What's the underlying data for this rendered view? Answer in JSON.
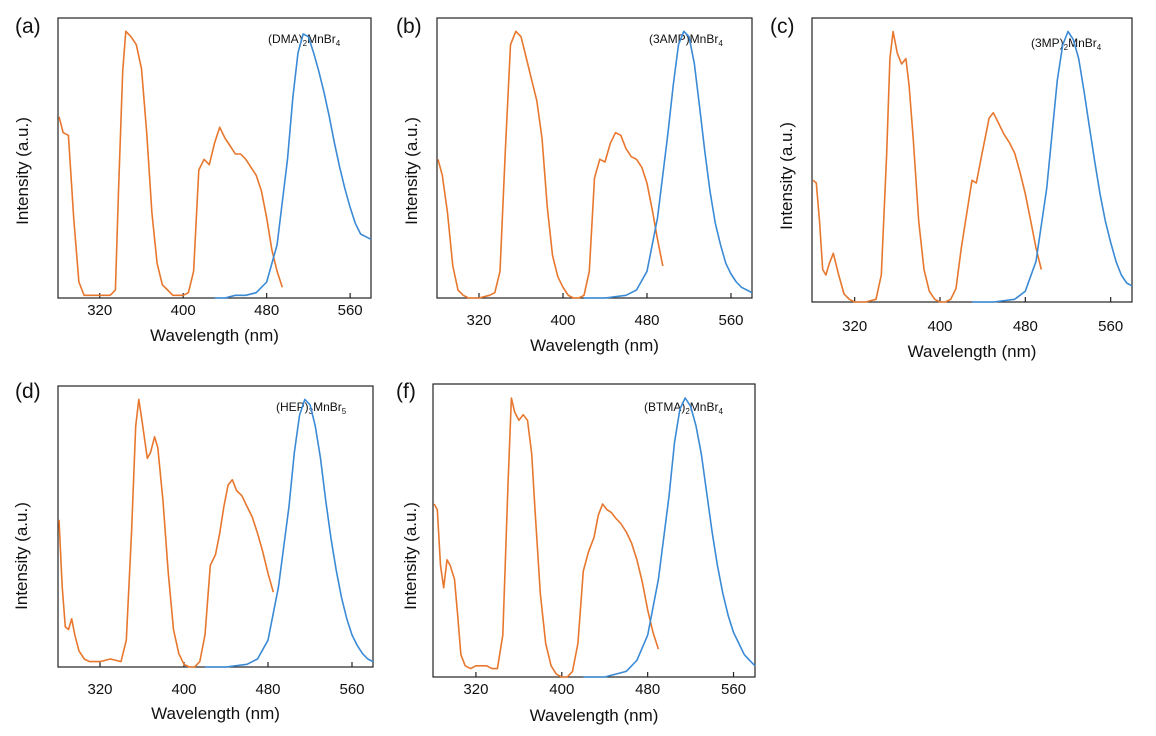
{
  "colors": {
    "excitation": "#e8772e",
    "emission": "#3b8ad6",
    "axis": "#222222"
  },
  "chart_data": [
    {
      "type": "line",
      "panel_label": "(a)",
      "compound": {
        "parts": [
          "(DMA)",
          "2",
          "MnBr",
          "4"
        ]
      },
      "xlabel": "Wavelength (nm)",
      "ylabel": "Intensity (a.u.)",
      "xlim": [
        280,
        580
      ],
      "ylim": [
        0,
        1.05
      ],
      "xticks": [
        "320",
        "400",
        "480",
        "560"
      ],
      "series": [
        {
          "role": "excitation",
          "x": [
            281,
            285,
            290,
            295,
            300,
            305,
            310,
            315,
            320,
            325,
            330,
            335,
            338,
            342,
            345,
            350,
            355,
            360,
            365,
            370,
            375,
            380,
            385,
            390,
            395,
            400,
            405,
            410,
            415,
            420,
            425,
            430,
            435,
            440,
            445,
            450,
            455,
            460,
            465,
            470,
            475,
            480,
            485,
            490,
            495
          ],
          "y": [
            0.68,
            0.62,
            0.61,
            0.3,
            0.06,
            0.01,
            0.01,
            0.01,
            0.01,
            0.01,
            0.01,
            0.03,
            0.4,
            0.85,
            1.0,
            0.98,
            0.95,
            0.86,
            0.62,
            0.32,
            0.13,
            0.05,
            0.03,
            0.01,
            0.01,
            0.01,
            0.02,
            0.1,
            0.48,
            0.52,
            0.5,
            0.58,
            0.64,
            0.6,
            0.57,
            0.54,
            0.54,
            0.52,
            0.49,
            0.46,
            0.4,
            0.3,
            0.18,
            0.1,
            0.04
          ]
        },
        {
          "role": "emission",
          "x": [
            430,
            440,
            450,
            460,
            470,
            480,
            490,
            500,
            505,
            510,
            515,
            520,
            525,
            530,
            535,
            540,
            545,
            550,
            555,
            560,
            565,
            570,
            575,
            580
          ],
          "y": [
            0.0,
            0.0,
            0.01,
            0.01,
            0.02,
            0.06,
            0.2,
            0.52,
            0.75,
            0.92,
            0.99,
            0.98,
            0.92,
            0.85,
            0.77,
            0.68,
            0.58,
            0.49,
            0.41,
            0.34,
            0.28,
            0.24,
            0.23,
            0.22
          ]
        }
      ]
    },
    {
      "type": "line",
      "panel_label": "(b)",
      "compound": {
        "parts": [
          "(3AMP)MnBr",
          "4"
        ]
      },
      "xlabel": "Wavelength (nm)",
      "ylabel": "Intensity (a.u.)",
      "xlim": [
        280,
        580
      ],
      "ylim": [
        0,
        1.05
      ],
      "xticks": [
        "320",
        "400",
        "480",
        "560"
      ],
      "series": [
        {
          "role": "excitation",
          "x": [
            281,
            285,
            290,
            295,
            300,
            305,
            310,
            320,
            330,
            335,
            340,
            345,
            350,
            355,
            360,
            365,
            370,
            375,
            380,
            385,
            390,
            395,
            400,
            405,
            410,
            415,
            420,
            425,
            430,
            435,
            440,
            445,
            450,
            455,
            460,
            465,
            470,
            475,
            480,
            485,
            490,
            495
          ],
          "y": [
            0.52,
            0.46,
            0.32,
            0.12,
            0.03,
            0.01,
            0.0,
            0.0,
            0.01,
            0.02,
            0.1,
            0.55,
            0.95,
            1.0,
            0.98,
            0.9,
            0.82,
            0.74,
            0.6,
            0.34,
            0.16,
            0.08,
            0.04,
            0.01,
            0.0,
            0.0,
            0.01,
            0.1,
            0.45,
            0.52,
            0.51,
            0.58,
            0.62,
            0.61,
            0.56,
            0.53,
            0.52,
            0.49,
            0.43,
            0.33,
            0.22,
            0.12
          ]
        },
        {
          "role": "emission",
          "x": [
            420,
            440,
            460,
            470,
            480,
            490,
            500,
            505,
            510,
            515,
            520,
            525,
            530,
            535,
            540,
            545,
            550,
            555,
            560,
            565,
            570,
            575,
            580
          ],
          "y": [
            0.0,
            0.0,
            0.01,
            0.03,
            0.1,
            0.3,
            0.62,
            0.8,
            0.95,
            1.0,
            0.98,
            0.88,
            0.72,
            0.55,
            0.4,
            0.28,
            0.2,
            0.13,
            0.09,
            0.06,
            0.04,
            0.03,
            0.02
          ]
        }
      ]
    },
    {
      "type": "line",
      "panel_label": "(c)",
      "compound": {
        "parts": [
          "(3MP)",
          "2",
          "MnBr",
          "4"
        ]
      },
      "xlabel": "Wavelength (nm)",
      "ylabel": "Intensity (a.u.)",
      "xlim": [
        280,
        580
      ],
      "ylim": [
        0,
        1.05
      ],
      "xticks": [
        "320",
        "400",
        "480",
        "560"
      ],
      "series": [
        {
          "role": "excitation",
          "x": [
            281,
            284,
            287,
            290,
            293,
            296,
            300,
            305,
            310,
            315,
            320,
            330,
            340,
            345,
            350,
            353,
            356,
            360,
            364,
            368,
            371,
            375,
            380,
            385,
            390,
            395,
            400,
            405,
            410,
            415,
            420,
            430,
            434,
            438,
            442,
            446,
            450,
            455,
            460,
            465,
            470,
            475,
            480,
            485,
            490,
            495
          ],
          "y": [
            0.45,
            0.44,
            0.3,
            0.12,
            0.1,
            0.14,
            0.18,
            0.1,
            0.03,
            0.01,
            0.0,
            0.0,
            0.01,
            0.1,
            0.55,
            0.9,
            1.0,
            0.92,
            0.88,
            0.9,
            0.8,
            0.6,
            0.3,
            0.12,
            0.04,
            0.01,
            0.0,
            0.0,
            0.01,
            0.05,
            0.2,
            0.45,
            0.44,
            0.52,
            0.6,
            0.68,
            0.7,
            0.66,
            0.62,
            0.59,
            0.55,
            0.48,
            0.4,
            0.3,
            0.2,
            0.12
          ]
        },
        {
          "role": "emission",
          "x": [
            430,
            450,
            470,
            480,
            490,
            500,
            505,
            510,
            515,
            520,
            525,
            530,
            535,
            540,
            545,
            550,
            555,
            560,
            565,
            570,
            575,
            580
          ],
          "y": [
            0.0,
            0.0,
            0.01,
            0.04,
            0.15,
            0.42,
            0.62,
            0.82,
            0.95,
            1.0,
            0.97,
            0.9,
            0.78,
            0.65,
            0.52,
            0.4,
            0.3,
            0.22,
            0.15,
            0.1,
            0.07,
            0.06
          ]
        }
      ]
    },
    {
      "type": "line",
      "panel_label": "(d)",
      "compound": {
        "parts": [
          "(HEP)",
          "3",
          "MnBr",
          "5"
        ]
      },
      "xlabel": "Wavelength (nm)",
      "ylabel": "Intensity (a.u.)",
      "xlim": [
        280,
        580
      ],
      "ylim": [
        0,
        1.05
      ],
      "xticks": [
        "320",
        "400",
        "480",
        "560"
      ],
      "series": [
        {
          "role": "excitation",
          "x": [
            281,
            284,
            287,
            290,
            293,
            296,
            300,
            305,
            310,
            320,
            330,
            340,
            345,
            350,
            354,
            357,
            360,
            365,
            368,
            372,
            375,
            380,
            385,
            390,
            395,
            400,
            405,
            410,
            415,
            420,
            425,
            430,
            434,
            438,
            442,
            446,
            450,
            455,
            460,
            465,
            470,
            475,
            480,
            485
          ],
          "y": [
            0.55,
            0.3,
            0.15,
            0.14,
            0.18,
            0.12,
            0.06,
            0.03,
            0.02,
            0.02,
            0.03,
            0.02,
            0.1,
            0.5,
            0.9,
            1.0,
            0.92,
            0.78,
            0.8,
            0.86,
            0.82,
            0.62,
            0.35,
            0.14,
            0.05,
            0.01,
            0.0,
            0.0,
            0.02,
            0.12,
            0.38,
            0.42,
            0.5,
            0.6,
            0.68,
            0.7,
            0.66,
            0.64,
            0.6,
            0.56,
            0.5,
            0.43,
            0.35,
            0.28
          ]
        },
        {
          "role": "emission",
          "x": [
            420,
            440,
            460,
            470,
            480,
            490,
            500,
            505,
            510,
            515,
            520,
            525,
            530,
            535,
            540,
            545,
            550,
            555,
            560,
            565,
            570,
            575,
            580
          ],
          "y": [
            0.0,
            0.0,
            0.01,
            0.03,
            0.1,
            0.3,
            0.6,
            0.8,
            0.94,
            1.0,
            0.98,
            0.9,
            0.78,
            0.62,
            0.48,
            0.36,
            0.26,
            0.18,
            0.12,
            0.08,
            0.05,
            0.03,
            0.02
          ]
        }
      ]
    },
    {
      "type": "line",
      "panel_label": "(f)",
      "compound": {
        "parts": [
          "(BTMA)",
          "2",
          "MnBr",
          "4"
        ]
      },
      "xlabel": "Wavelength (nm)",
      "ylabel": "Intensity (a.u.)",
      "xlim": [
        280,
        580
      ],
      "ylim": [
        0,
        1.05
      ],
      "xticks": [
        "320",
        "400",
        "480",
        "560"
      ],
      "series": [
        {
          "role": "excitation",
          "x": [
            281,
            284,
            287,
            290,
            293,
            296,
            300,
            303,
            306,
            310,
            315,
            320,
            330,
            335,
            340,
            345,
            350,
            353,
            356,
            360,
            364,
            368,
            372,
            375,
            380,
            385,
            390,
            395,
            400,
            405,
            410,
            415,
            420,
            425,
            430,
            434,
            438,
            442,
            446,
            450,
            455,
            460,
            465,
            470,
            475,
            480,
            485,
            490
          ],
          "y": [
            0.62,
            0.6,
            0.4,
            0.32,
            0.42,
            0.4,
            0.35,
            0.22,
            0.08,
            0.04,
            0.03,
            0.04,
            0.04,
            0.03,
            0.03,
            0.15,
            0.7,
            1.0,
            0.95,
            0.92,
            0.94,
            0.92,
            0.8,
            0.6,
            0.3,
            0.12,
            0.04,
            0.01,
            0.0,
            0.0,
            0.02,
            0.12,
            0.38,
            0.45,
            0.5,
            0.58,
            0.62,
            0.6,
            0.59,
            0.57,
            0.55,
            0.52,
            0.48,
            0.42,
            0.34,
            0.24,
            0.16,
            0.1
          ]
        },
        {
          "role": "emission",
          "x": [
            420,
            440,
            460,
            470,
            480,
            490,
            500,
            505,
            510,
            515,
            520,
            525,
            530,
            535,
            540,
            545,
            550,
            555,
            560,
            565,
            570,
            575,
            580
          ],
          "y": [
            0.0,
            0.0,
            0.02,
            0.06,
            0.15,
            0.35,
            0.65,
            0.84,
            0.96,
            1.0,
            0.97,
            0.9,
            0.8,
            0.66,
            0.52,
            0.4,
            0.3,
            0.22,
            0.16,
            0.12,
            0.08,
            0.06,
            0.04
          ]
        }
      ]
    }
  ]
}
